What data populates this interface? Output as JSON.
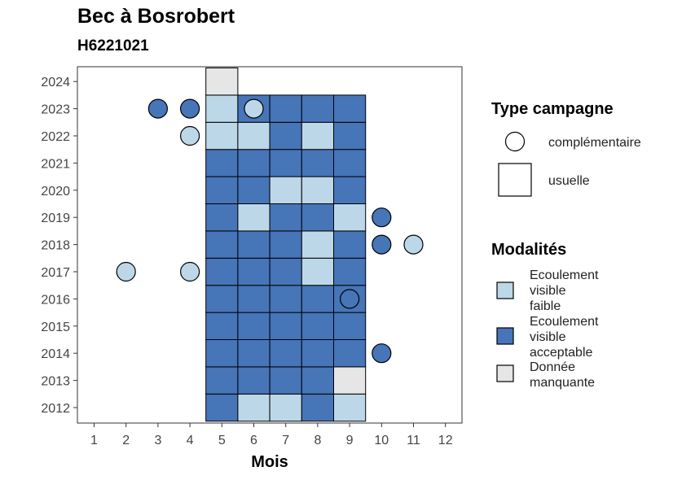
{
  "chart_data": {
    "type": "heatmap",
    "title": "Bec à Bosrobert",
    "subtitle": "H6221021",
    "xlabel": "Mois",
    "ylabel": "",
    "x_ticks": [
      1,
      2,
      3,
      4,
      5,
      6,
      7,
      8,
      9,
      10,
      11,
      12
    ],
    "y_ticks": [
      2012,
      2013,
      2014,
      2015,
      2016,
      2017,
      2018,
      2019,
      2020,
      2021,
      2022,
      2023,
      2024
    ],
    "colors": {
      "faible": "#bcd7e8",
      "acceptable": "#4675b8",
      "manquante": "#e6e6e6"
    },
    "legend_campagne": {
      "title": "Type campagne",
      "items": [
        {
          "label": "complémentaire",
          "shape": "circle"
        },
        {
          "label": "usuelle",
          "shape": "square"
        }
      ]
    },
    "legend_modalites": {
      "title": "Modalités",
      "items": [
        {
          "key": "faible",
          "lines": [
            "Ecoulement",
            "visible",
            "faible"
          ]
        },
        {
          "key": "acceptable",
          "lines": [
            "Ecoulement",
            "visible",
            "acceptable"
          ]
        },
        {
          "key": "manquante",
          "lines": [
            "Donnée",
            "manquante"
          ]
        }
      ]
    },
    "usuelle": [
      {
        "year": 2012,
        "values": {
          "5": "acceptable",
          "6": "faible",
          "7": "faible",
          "8": "acceptable",
          "9": "faible"
        }
      },
      {
        "year": 2013,
        "values": {
          "5": "acceptable",
          "6": "acceptable",
          "7": "acceptable",
          "8": "acceptable",
          "9": "manquante"
        }
      },
      {
        "year": 2014,
        "values": {
          "5": "acceptable",
          "6": "acceptable",
          "7": "acceptable",
          "8": "acceptable",
          "9": "acceptable"
        }
      },
      {
        "year": 2015,
        "values": {
          "5": "acceptable",
          "6": "acceptable",
          "7": "acceptable",
          "8": "acceptable",
          "9": "acceptable"
        }
      },
      {
        "year": 2016,
        "values": {
          "5": "acceptable",
          "6": "acceptable",
          "7": "acceptable",
          "8": "acceptable",
          "9": "acceptable"
        }
      },
      {
        "year": 2017,
        "values": {
          "5": "acceptable",
          "6": "acceptable",
          "7": "acceptable",
          "8": "faible",
          "9": "acceptable"
        }
      },
      {
        "year": 2018,
        "values": {
          "5": "acceptable",
          "6": "acceptable",
          "7": "acceptable",
          "8": "faible",
          "9": "acceptable"
        }
      },
      {
        "year": 2019,
        "values": {
          "5": "acceptable",
          "6": "faible",
          "7": "acceptable",
          "8": "acceptable",
          "9": "faible"
        }
      },
      {
        "year": 2020,
        "values": {
          "5": "acceptable",
          "6": "acceptable",
          "7": "faible",
          "8": "faible",
          "9": "acceptable"
        }
      },
      {
        "year": 2021,
        "values": {
          "5": "acceptable",
          "6": "acceptable",
          "7": "acceptable",
          "8": "acceptable",
          "9": "acceptable"
        }
      },
      {
        "year": 2022,
        "values": {
          "5": "faible",
          "6": "faible",
          "7": "acceptable",
          "8": "faible",
          "9": "acceptable"
        }
      },
      {
        "year": 2023,
        "values": {
          "5": "faible",
          "6": "acceptable",
          "7": "acceptable",
          "8": "acceptable",
          "9": "acceptable"
        }
      },
      {
        "year": 2024,
        "values": {
          "5": "manquante"
        }
      }
    ],
    "complementaire": [
      {
        "year": 2023,
        "month": 3,
        "value": "acceptable"
      },
      {
        "year": 2023,
        "month": 4,
        "value": "acceptable"
      },
      {
        "year": 2023,
        "month": 6,
        "value": "faible"
      },
      {
        "year": 2022,
        "month": 4,
        "value": "faible"
      },
      {
        "year": 2019,
        "month": 10,
        "value": "acceptable"
      },
      {
        "year": 2018,
        "month": 10,
        "value": "acceptable"
      },
      {
        "year": 2018,
        "month": 11,
        "value": "faible"
      },
      {
        "year": 2017,
        "month": 2,
        "value": "faible"
      },
      {
        "year": 2017,
        "month": 4,
        "value": "faible"
      },
      {
        "year": 2016,
        "month": 9,
        "value": "acceptable"
      },
      {
        "year": 2014,
        "month": 10,
        "value": "acceptable"
      }
    ]
  }
}
